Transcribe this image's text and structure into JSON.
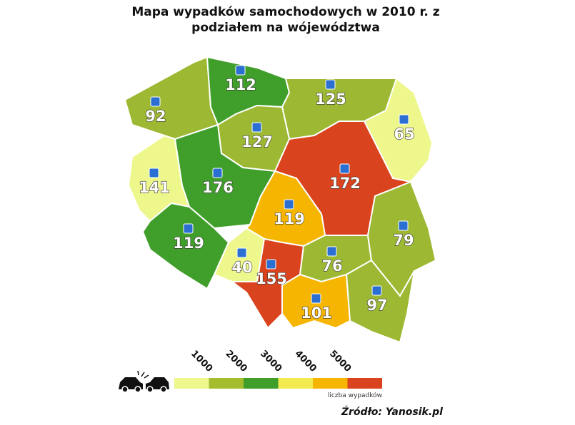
{
  "title": [
    "Mapa wypadków samochodowych w 2010 r. z",
    "podziałem na wójewództwa"
  ],
  "regions": [
    {
      "value": 92,
      "color": "#9db833"
    },
    {
      "value": 112,
      "color": "#3f9f2a"
    },
    {
      "value": 125,
      "color": "#9db833"
    },
    {
      "value": 65,
      "color": "#eef78c"
    },
    {
      "value": 127,
      "color": "#9db833"
    },
    {
      "value": 141,
      "color": "#eef78c"
    },
    {
      "value": 176,
      "color": "#3f9f2a"
    },
    {
      "value": 172,
      "color": "#d9431d"
    },
    {
      "value": 119,
      "color": "#f6b500"
    },
    {
      "value": 119,
      "color": "#3f9f2a"
    },
    {
      "value": 40,
      "color": "#eef78c"
    },
    {
      "value": 155,
      "color": "#d9431d"
    },
    {
      "value": 76,
      "color": "#9db833"
    },
    {
      "value": 79,
      "color": "#9db833"
    },
    {
      "value": 101,
      "color": "#f6b500"
    },
    {
      "value": 97,
      "color": "#9db833"
    }
  ],
  "legend": {
    "ticks": [
      1000,
      2000,
      3000,
      4000,
      5000
    ],
    "colors": [
      "#eef78c",
      "#a4bd2f",
      "#3f9f2a",
      "#f3ea4f",
      "#f6b500",
      "#d9431d"
    ],
    "label": "liczba wypadków"
  },
  "source": "Źródło: Yanosik.pl"
}
